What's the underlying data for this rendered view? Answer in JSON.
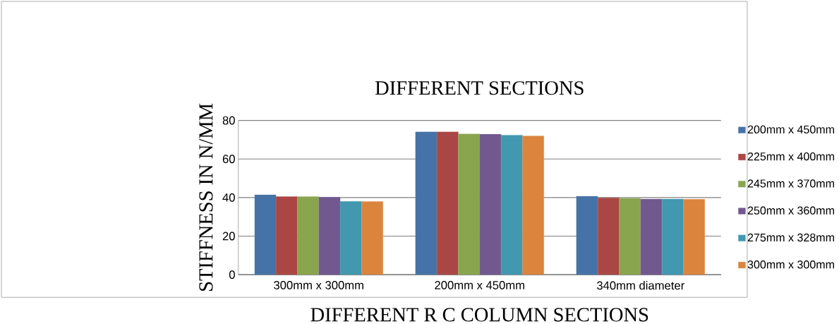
{
  "chart_data": {
    "type": "bar",
    "title": "DIFFERENT SECTIONS",
    "xlabel": "DIFFERENT R C COLUMN SECTIONS",
    "ylabel": "STIFFNESS IN N/MM",
    "categories": [
      "300mm x 300mm",
      "200mm x 450mm",
      "340mm  diameter"
    ],
    "series": [
      {
        "name": "200mm x 450mm",
        "color": "#4572a7",
        "values": [
          41.4,
          74.1,
          40.7
        ]
      },
      {
        "name": "225mm x 400mm",
        "color": "#aa4643",
        "values": [
          40.5,
          74.1,
          39.9
        ]
      },
      {
        "name": "245mm x 370mm",
        "color": "#89a54e",
        "values": [
          40.5,
          73.0,
          39.6
        ]
      },
      {
        "name": "250mm x 360mm",
        "color": "#71588f",
        "values": [
          40.2,
          72.9,
          39.2
        ]
      },
      {
        "name": "275mm x 328mm",
        "color": "#4198af",
        "values": [
          38.0,
          72.4,
          39.2
        ]
      },
      {
        "name": "300mm x 300mm",
        "color": "#db843d",
        "values": [
          37.9,
          72.0,
          39.1
        ]
      }
    ],
    "ylim": [
      0,
      80
    ],
    "yticks": [
      0,
      20,
      40,
      60,
      80
    ],
    "grid": "y",
    "legend": "right"
  }
}
